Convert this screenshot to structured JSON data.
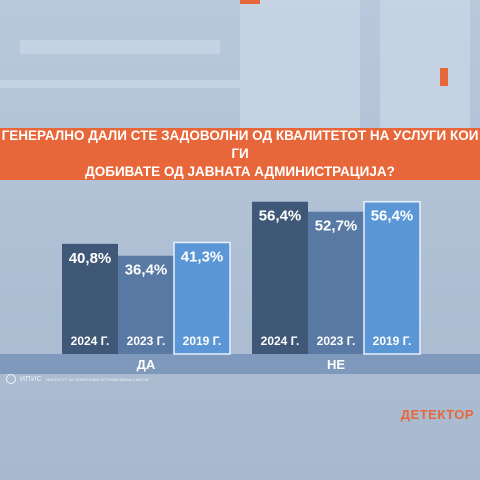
{
  "title_line1": "ГЕНЕРАЛНО ДАЛИ СТЕ ЗАДОВОЛНИ ОД КВАЛИТЕТОТ НА УСЛУГИ КОИ ГИ",
  "title_line2": "ДОБИВАТЕ ОД ЈАВНАТА АДМИНИСТРАЦИЈА?",
  "colors": {
    "y2024": "#3f5878",
    "y2023": "#5879a3",
    "y2019": "#5b97d6",
    "accent": "#e8673a",
    "group_bar": "#7e99bb"
  },
  "chart_data": {
    "type": "bar",
    "title": "ГЕНЕРАЛНО ДАЛИ СТЕ ЗАДОВОЛНИ ОД КВАЛИТЕТОТ НА УСЛУГИ КОИ ГИ ДОБИВАТЕ ОД ЈАВНАТА АДМИНИСТРАЦИЈА?",
    "xlabel": "",
    "ylabel": "",
    "ylim": [
      0,
      60
    ],
    "groups": [
      {
        "label": "ДА",
        "bars": [
          {
            "year": "2024 Г.",
            "value": 40.8,
            "value_label": "40,8%"
          },
          {
            "year": "2023 Г.",
            "value": 36.4,
            "value_label": "36,4%"
          },
          {
            "year": "2019 Г.",
            "value": 41.3,
            "value_label": "41,3%"
          }
        ]
      },
      {
        "label": "НЕ",
        "bars": [
          {
            "year": "2024 Г.",
            "value": 56.4,
            "value_label": "56,4%"
          },
          {
            "year": "2023 Г.",
            "value": 52.7,
            "value_label": "52,7%"
          },
          {
            "year": "2019 Г.",
            "value": 56.4,
            "value_label": "56,4%"
          }
        ]
      }
    ]
  },
  "footer": {
    "logo_text": "ИПИС",
    "logo_sub": "ИНСТИТУТ ЗА ПОЛИТИЧКИ ИСТРАЖУВАЊА СКОПЈЕ",
    "brand": "ДЕТЕКТОР"
  }
}
